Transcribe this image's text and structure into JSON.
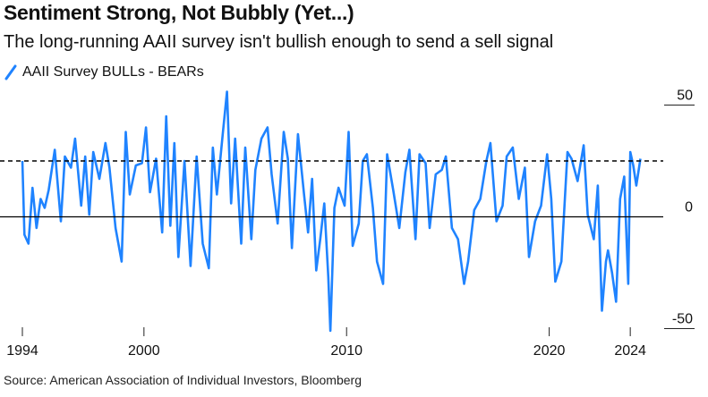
{
  "header": {
    "title": "Sentiment Strong, Not Bubbly (Yet...)",
    "subtitle": "The long-running AAII survey isn't bullish enough to send a sell signal"
  },
  "legend": {
    "label": "AAII Survey BULLs - BEARs"
  },
  "colors": {
    "series": "#1f83ff",
    "axis": "#222222",
    "text": "#111111"
  },
  "chart_data": {
    "type": "line",
    "xlim": [
      1994,
      2024.7
    ],
    "ylim": [
      -53,
      57
    ],
    "y_ticks": [
      {
        "value": 50,
        "label": "50"
      },
      {
        "value": 0,
        "label": "0"
      },
      {
        "value": -50,
        "label": "-50"
      }
    ],
    "x_ticks": [
      {
        "value": 1994,
        "label": "1994"
      },
      {
        "value": 2000,
        "label": "2000"
      },
      {
        "value": 2010,
        "label": "2010"
      },
      {
        "value": 2020,
        "label": "2020"
      },
      {
        "value": 2024,
        "label": "2024"
      }
    ],
    "reference_lines": [
      {
        "value": 0,
        "style": "solid"
      },
      {
        "value": 25,
        "style": "dashed"
      }
    ],
    "series": [
      {
        "name": "AAII Survey BULLs - BEARs",
        "points": [
          [
            1994.0,
            25
          ],
          [
            1994.1,
            -8
          ],
          [
            1994.3,
            -12
          ],
          [
            1994.5,
            13
          ],
          [
            1994.7,
            -5
          ],
          [
            1994.9,
            8
          ],
          [
            1995.1,
            4
          ],
          [
            1995.3,
            12
          ],
          [
            1995.6,
            30
          ],
          [
            1995.9,
            -2
          ],
          [
            1996.1,
            27
          ],
          [
            1996.4,
            22
          ],
          [
            1996.6,
            35
          ],
          [
            1996.9,
            5
          ],
          [
            1997.1,
            27
          ],
          [
            1997.3,
            1
          ],
          [
            1997.5,
            29
          ],
          [
            1997.8,
            17
          ],
          [
            1998.1,
            33
          ],
          [
            1998.3,
            22
          ],
          [
            1998.6,
            -5
          ],
          [
            1998.9,
            -20
          ],
          [
            1999.1,
            38
          ],
          [
            1999.3,
            10
          ],
          [
            1999.6,
            23
          ],
          [
            1999.9,
            24
          ],
          [
            2000.1,
            40
          ],
          [
            2000.3,
            11
          ],
          [
            2000.6,
            26
          ],
          [
            2000.9,
            -7
          ],
          [
            2001.1,
            45
          ],
          [
            2001.3,
            -4
          ],
          [
            2001.5,
            33
          ],
          [
            2001.7,
            -18
          ],
          [
            2002.0,
            25
          ],
          [
            2002.3,
            -22
          ],
          [
            2002.6,
            27
          ],
          [
            2002.9,
            -12
          ],
          [
            2003.2,
            -23
          ],
          [
            2003.4,
            31
          ],
          [
            2003.6,
            10
          ],
          [
            2003.9,
            38
          ],
          [
            2004.1,
            56
          ],
          [
            2004.3,
            6
          ],
          [
            2004.5,
            35
          ],
          [
            2004.8,
            -12
          ],
          [
            2005.0,
            31
          ],
          [
            2005.3,
            -10
          ],
          [
            2005.5,
            21
          ],
          [
            2005.8,
            35
          ],
          [
            2006.1,
            40
          ],
          [
            2006.3,
            19
          ],
          [
            2006.6,
            -3
          ],
          [
            2006.9,
            38
          ],
          [
            2007.1,
            26
          ],
          [
            2007.3,
            -14
          ],
          [
            2007.6,
            37
          ],
          [
            2007.9,
            10
          ],
          [
            2008.1,
            -7
          ],
          [
            2008.3,
            17
          ],
          [
            2008.5,
            -24
          ],
          [
            2008.7,
            -10
          ],
          [
            2008.9,
            6
          ],
          [
            2009.1,
            -27
          ],
          [
            2009.2,
            -51
          ],
          [
            2009.4,
            4
          ],
          [
            2009.6,
            13
          ],
          [
            2009.9,
            5
          ],
          [
            2010.1,
            38
          ],
          [
            2010.3,
            -13
          ],
          [
            2010.6,
            -3
          ],
          [
            2010.8,
            25
          ],
          [
            2011.0,
            28
          ],
          [
            2011.3,
            4
          ],
          [
            2011.5,
            -20
          ],
          [
            2011.8,
            -30
          ],
          [
            2012.0,
            28
          ],
          [
            2012.3,
            12
          ],
          [
            2012.6,
            -5
          ],
          [
            2012.9,
            20
          ],
          [
            2013.1,
            30
          ],
          [
            2013.4,
            -10
          ],
          [
            2013.6,
            28
          ],
          [
            2013.9,
            24
          ],
          [
            2014.1,
            -5
          ],
          [
            2014.4,
            19
          ],
          [
            2014.7,
            21
          ],
          [
            2014.9,
            27
          ],
          [
            2015.2,
            -5
          ],
          [
            2015.5,
            -10
          ],
          [
            2015.8,
            -30
          ],
          [
            2016.0,
            -20
          ],
          [
            2016.3,
            3
          ],
          [
            2016.6,
            8
          ],
          [
            2016.9,
            25
          ],
          [
            2017.1,
            33
          ],
          [
            2017.4,
            -2
          ],
          [
            2017.7,
            5
          ],
          [
            2017.9,
            27
          ],
          [
            2018.2,
            31
          ],
          [
            2018.5,
            8
          ],
          [
            2018.8,
            22
          ],
          [
            2019.0,
            -18
          ],
          [
            2019.3,
            -2
          ],
          [
            2019.6,
            5
          ],
          [
            2019.9,
            28
          ],
          [
            2020.1,
            8
          ],
          [
            2020.3,
            -29
          ],
          [
            2020.6,
            -20
          ],
          [
            2020.9,
            29
          ],
          [
            2021.1,
            26
          ],
          [
            2021.4,
            16
          ],
          [
            2021.7,
            32
          ],
          [
            2021.9,
            1
          ],
          [
            2022.2,
            -10
          ],
          [
            2022.4,
            14
          ],
          [
            2022.6,
            -42
          ],
          [
            2022.8,
            -20
          ],
          [
            2022.9,
            -15
          ],
          [
            2023.1,
            -25
          ],
          [
            2023.3,
            -38
          ],
          [
            2023.5,
            8
          ],
          [
            2023.7,
            18
          ],
          [
            2023.9,
            -30
          ],
          [
            2024.0,
            29
          ],
          [
            2024.15,
            23
          ],
          [
            2024.3,
            14
          ],
          [
            2024.5,
            26
          ]
        ]
      }
    ]
  },
  "source": "Source: American Association of Individual Investors, Bloomberg"
}
